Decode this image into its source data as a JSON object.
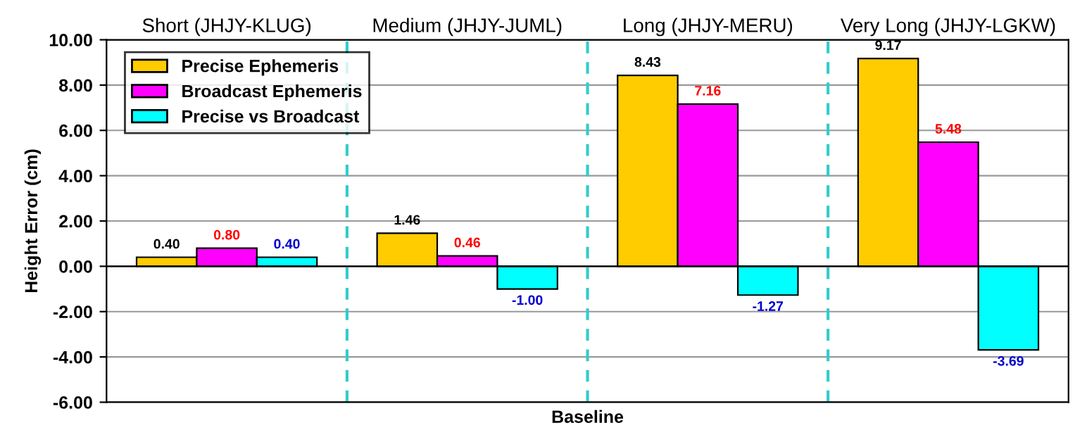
{
  "chart_data": {
    "type": "bar",
    "xlabel": "Baseline",
    "ylabel": "Height Error (cm)",
    "categories": [
      "Short (JHJY-KLUG)",
      "Medium (JHJY-JUML)",
      "Long (JHJY-MERU)",
      "Very Long (JHJY-LGKW)"
    ],
    "series": [
      {
        "name": "Precise Ephemeris",
        "color": "#ffcc00",
        "values": [
          0.4,
          1.46,
          8.43,
          9.17
        ],
        "value_labels": [
          "0.40",
          "1.46",
          "8.43",
          "9.17"
        ]
      },
      {
        "name": "Broadcast Ephemeris",
        "color": "#ff00ff",
        "values": [
          0.8,
          0.46,
          7.16,
          5.48
        ],
        "value_labels": [
          "0.80",
          "0.46",
          "7.16",
          "5.48"
        ]
      },
      {
        "name": "Precise vs Broadcast",
        "color": "#00ffff",
        "values": [
          0.4,
          -1.0,
          -1.27,
          -3.69
        ],
        "value_labels": [
          "0.40",
          "-1.00",
          "-1.27",
          "-3.69"
        ]
      }
    ],
    "ylim": [
      -6,
      10
    ],
    "yticks": [
      {
        "value": -6,
        "label": "-6.00"
      },
      {
        "value": -4,
        "label": "-4.00"
      },
      {
        "value": -2,
        "label": "-2.00"
      },
      {
        "value": 0,
        "label": "0.00"
      },
      {
        "value": 2,
        "label": "2.00"
      },
      {
        "value": 4,
        "label": "4.00"
      },
      {
        "value": 6,
        "label": "6.00"
      },
      {
        "value": 8,
        "label": "8.00"
      },
      {
        "value": 10,
        "label": "10.00"
      }
    ],
    "grid": "y",
    "legend": "top left"
  }
}
